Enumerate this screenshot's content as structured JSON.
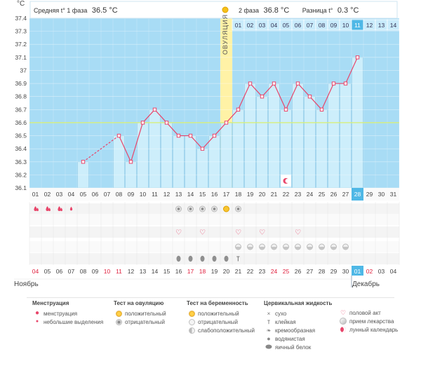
{
  "chart_data": {
    "type": "line",
    "title": "",
    "xlabel": "",
    "ylabel": "°C",
    "ylim": [
      36.1,
      37.4
    ],
    "y_ticks": [
      "36.1",
      "36.2",
      "36.3",
      "36.4",
      "36.5",
      "36.6",
      "36.7",
      "36.8",
      "36.9",
      "37",
      "37.1",
      "37.2",
      "37.3",
      "37.4"
    ],
    "coverline": 36.6,
    "cycle_days": [
      "01",
      "02",
      "03",
      "04",
      "05",
      "06",
      "07",
      "08",
      "09",
      "10",
      "11",
      "12",
      "13",
      "14",
      "15",
      "16",
      "17",
      "18",
      "19",
      "20",
      "21",
      "22",
      "23",
      "24",
      "25",
      "26",
      "27",
      "28",
      "29",
      "30",
      "31"
    ],
    "post_ovulation_days": [
      "01",
      "02",
      "03",
      "04",
      "05",
      "06",
      "07",
      "08",
      "09",
      "10",
      "11",
      "12",
      "13",
      "14"
    ],
    "ovulation_day": "17",
    "current_day": "28",
    "series": [
      {
        "name": "BBT",
        "values": [
          null,
          null,
          null,
          null,
          36.3,
          null,
          null,
          36.5,
          36.3,
          36.6,
          36.7,
          36.6,
          36.5,
          36.5,
          36.4,
          36.5,
          36.6,
          36.7,
          36.9,
          36.8,
          36.9,
          36.7,
          36.9,
          36.8,
          36.7,
          36.9,
          36.9,
          37.1,
          null,
          null,
          null
        ]
      }
    ],
    "phase1_avg_label": "Средняя t° 1 фаза",
    "phase1_avg_value": "36.5 °C",
    "phase2_label": "2 фаза",
    "phase2_value": "36.8 °C",
    "diff_label": "Разница t°",
    "diff_value": "0.3 °C",
    "ovulation_label": "ОВУЛЯЦИЯ",
    "dates": [
      {
        "d": "04",
        "red": true
      },
      {
        "d": "05"
      },
      {
        "d": "06"
      },
      {
        "d": "07"
      },
      {
        "d": "08"
      },
      {
        "d": "09"
      },
      {
        "d": "10",
        "red": true
      },
      {
        "d": "11",
        "red": true
      },
      {
        "d": "12"
      },
      {
        "d": "13"
      },
      {
        "d": "14"
      },
      {
        "d": "15"
      },
      {
        "d": "16"
      },
      {
        "d": "17",
        "red": true
      },
      {
        "d": "18",
        "red": true
      },
      {
        "d": "19"
      },
      {
        "d": "20"
      },
      {
        "d": "21"
      },
      {
        "d": "22"
      },
      {
        "d": "23"
      },
      {
        "d": "24",
        "red": true
      },
      {
        "d": "25",
        "red": true
      },
      {
        "d": "26"
      },
      {
        "d": "27"
      },
      {
        "d": "28"
      },
      {
        "d": "29"
      },
      {
        "d": "30"
      },
      {
        "d": "01",
        "hl": true
      },
      {
        "d": "02",
        "red": true
      },
      {
        "d": "03"
      },
      {
        "d": "04"
      }
    ],
    "month_start": "Ноябрь",
    "month_end": "Декабрь",
    "markers": {
      "menstruation_days": [
        1,
        2,
        3
      ],
      "spotting_days": [
        4
      ],
      "ovulation_test_negative_days": [
        13,
        14,
        15,
        16,
        18
      ],
      "ovulation_test_positive_days": [
        17
      ],
      "moon_days": [
        22
      ],
      "intercourse_days": [
        13,
        15,
        18,
        20,
        23
      ],
      "medication_days": [
        18,
        19,
        20,
        21,
        22,
        23,
        24,
        25,
        26,
        27
      ],
      "mucus_white_days": [
        13,
        14,
        15,
        16,
        17
      ],
      "mucus_sticky_days": [
        18
      ]
    },
    "colors": {
      "chart_bg": "#a8dcf5",
      "bar": "#cdeefb",
      "bar_border": "#86c6e4",
      "ovulation_band": "#fff2a6",
      "line": "#e8456a",
      "coverline": "#d8ef7a",
      "weekend": "#e01f3d",
      "highlight": "#4fb8e6"
    }
  },
  "legend": {
    "menstruation": {
      "title": "Менструация",
      "items": [
        "менструация",
        "небольшие выделения"
      ]
    },
    "ovulation_test": {
      "title": "Тест на овуляцию",
      "items": [
        "положительный",
        "отрицательный"
      ]
    },
    "pregnancy_test": {
      "title": "Тест на беременность",
      "items": [
        "положительный",
        "отрицательный",
        "слабоположительный"
      ]
    },
    "cervical_fluid": {
      "title": "Цервикальная жидкость",
      "items": [
        "сухо",
        "клейкая",
        "кремообразная",
        "водянистая",
        "яичный белок"
      ]
    },
    "other": {
      "items": [
        "половой акт",
        "прием лекарства",
        "лунный календарь"
      ]
    }
  }
}
